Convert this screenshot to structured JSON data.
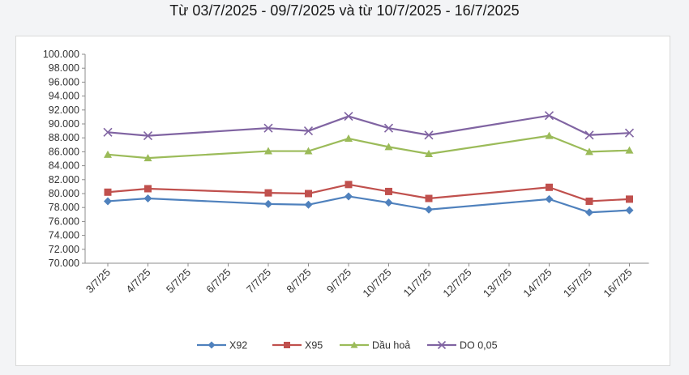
{
  "title": "Từ 03/7/2025 - 09/7/2025 và từ 10/7/2025 - 16/7/2025",
  "chart_data": {
    "type": "line",
    "title": "Từ 03/7/2025 - 09/7/2025 và từ 10/7/2025 - 16/7/2025",
    "categories": [
      "3/7/25",
      "4/7/25",
      "5/7/25",
      "6/7/25",
      "7/7/25",
      "8/7/25",
      "9/7/25",
      "10/7/25",
      "11/7/25",
      "12/7/25",
      "13/7/25",
      "14/7/25",
      "15/7/25",
      "16/7/25"
    ],
    "yticks": [
      "70.000",
      "72.000",
      "74.000",
      "76.000",
      "78.000",
      "80.000",
      "82.000",
      "84.000",
      "86.000",
      "88.000",
      "90.000",
      "92.000",
      "94.000",
      "96.000",
      "98.000",
      "100.000"
    ],
    "ylim": [
      70000,
      100000
    ],
    "grid": false,
    "legend": "bottom",
    "series": [
      {
        "name": "X92",
        "color": "#4f81bd",
        "marker": "diamond",
        "points": [
          [
            0,
            78900
          ],
          [
            1,
            79300
          ],
          [
            4,
            78500
          ],
          [
            5,
            78400
          ],
          [
            6,
            79600
          ],
          [
            7,
            78700
          ],
          [
            8,
            77700
          ],
          [
            11,
            79200
          ],
          [
            12,
            77300
          ],
          [
            13,
            77600
          ]
        ]
      },
      {
        "name": "X95",
        "color": "#c0504d",
        "marker": "square",
        "points": [
          [
            0,
            80200
          ],
          [
            1,
            80700
          ],
          [
            4,
            80100
          ],
          [
            5,
            80000
          ],
          [
            6,
            81300
          ],
          [
            7,
            80300
          ],
          [
            8,
            79300
          ],
          [
            11,
            80900
          ],
          [
            12,
            78900
          ],
          [
            13,
            79200
          ]
        ]
      },
      {
        "name": "Dầu hoả",
        "color": "#9bbb59",
        "marker": "triangle",
        "points": [
          [
            0,
            85600
          ],
          [
            1,
            85100
          ],
          [
            4,
            86100
          ],
          [
            5,
            86100
          ],
          [
            6,
            87900
          ],
          [
            7,
            86700
          ],
          [
            8,
            85700
          ],
          [
            11,
            88300
          ],
          [
            12,
            86000
          ],
          [
            13,
            86200
          ]
        ]
      },
      {
        "name": "DO 0,05",
        "color": "#8064a2",
        "marker": "x",
        "points": [
          [
            0,
            88800
          ],
          [
            1,
            88300
          ],
          [
            4,
            89400
          ],
          [
            5,
            89000
          ],
          [
            6,
            91100
          ],
          [
            7,
            89400
          ],
          [
            8,
            88400
          ],
          [
            11,
            91200
          ],
          [
            12,
            88400
          ],
          [
            13,
            88700
          ]
        ]
      }
    ]
  }
}
